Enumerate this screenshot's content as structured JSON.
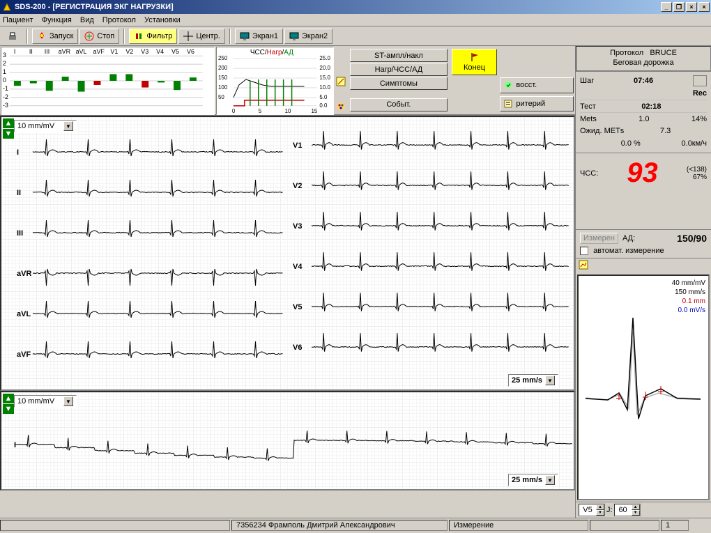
{
  "title": "SDS-200 - [РЕГИСТРАЦИЯ ЭКГ НАГРУЗКИ]",
  "menu": [
    "Пациент",
    "Функция",
    "Вид",
    "Протокол",
    "Установки"
  ],
  "toolbar": {
    "launch": "Запуск",
    "stop": "Стоп",
    "filter": "Фильтр",
    "center": "Центр.",
    "screen1": "Экран1",
    "screen2": "Экран2"
  },
  "mini1": {
    "leads": [
      "I",
      "II",
      "III",
      "aVR",
      "aVL",
      "aVF",
      "V1",
      "V2",
      "V3",
      "V4",
      "V5",
      "V6"
    ],
    "ytick": [
      "3",
      "2",
      "1",
      "0",
      "-1",
      "-2",
      "-3"
    ],
    "bars": [
      {
        "v": -0.6,
        "c": "#008000"
      },
      {
        "v": -0.3,
        "c": "#008000"
      },
      {
        "v": -1.2,
        "c": "#008000"
      },
      {
        "v": 0.5,
        "c": "#008000"
      },
      {
        "v": -1.3,
        "c": "#008000"
      },
      {
        "v": -0.5,
        "c": "#c00000"
      },
      {
        "v": 0.8,
        "c": "#008000"
      },
      {
        "v": 0.8,
        "c": "#008000"
      },
      {
        "v": -0.8,
        "c": "#c00000"
      },
      {
        "v": -0.2,
        "c": "#008000"
      },
      {
        "v": -1.1,
        "c": "#008000"
      },
      {
        "v": 0.4,
        "c": "#008000"
      }
    ]
  },
  "mini2": {
    "title_hr": "ЧСС",
    "title_load": "Нагр",
    "title_bp": "АД",
    "y_left": [
      "250",
      "200",
      "150",
      "100",
      "50"
    ],
    "y_right": [
      "25.0",
      "20.0",
      "15.0",
      "10.0",
      "5.0",
      "0.0"
    ],
    "x_ticks": [
      "0",
      "5",
      "10",
      "15"
    ]
  },
  "buttons": {
    "st": "ST-ампл/накл",
    "load_hr_bp": "Нагр/ЧСС/АД",
    "symptoms": "Симптомы",
    "events": "Событ.",
    "end": "Конец",
    "recovery": "восст.",
    "criterion": "ритерий"
  },
  "protocol": {
    "label": "Протокол",
    "name": "BRUCE",
    "device": "Беговая дорожка"
  },
  "timers": {
    "step_label": "Шаг",
    "step_time": "07:46",
    "rec": "Rec",
    "test_label": "Тест",
    "test_time": "02:18",
    "mets_label": "Mets",
    "mets": "1.0",
    "mets_pct": "14%",
    "expected_label": "Ожид. МЕТs",
    "expected": "7.3",
    "grade": "0.0 %",
    "speed": "0.0км/ч"
  },
  "hr": {
    "label": "ЧСС:",
    "value": "93",
    "limit": "(<138)",
    "pct": "67%"
  },
  "bp": {
    "meas_label": "Измерен",
    "bp_label": "АД:",
    "value": "150/90",
    "auto_label": "автомат. измерение"
  },
  "detail": {
    "scale_mm": "40 mm/mV",
    "scale_speed": "150 mm/s",
    "st_mm": "0.1 mm",
    "st_mv": "0.0 mV/s",
    "lead_sel": "V5",
    "j_label": "J:",
    "j_val": "60"
  },
  "ecg_main": {
    "gain": "10 mm/mV",
    "speed": "25 mm/s",
    "leads_left": [
      "I",
      "II",
      "III",
      "aVR",
      "aVL",
      "aVF"
    ],
    "leads_right": [
      "V1",
      "V2",
      "V3",
      "V4",
      "V5",
      "V6"
    ]
  },
  "ecg_strip": {
    "gain": "10 mm/mV",
    "speed": "25 mm/s",
    "lead": "I"
  },
  "status": {
    "patient_id": "7356234",
    "patient_name": "Фрамполь Дмитрий Александрович",
    "mode": "Измерение",
    "page": "1"
  },
  "colors": {
    "green": "#008000",
    "red": "#c00000",
    "blue": "#0000a0",
    "accent_red": "#ff0000",
    "yellow": "#ffff00"
  }
}
